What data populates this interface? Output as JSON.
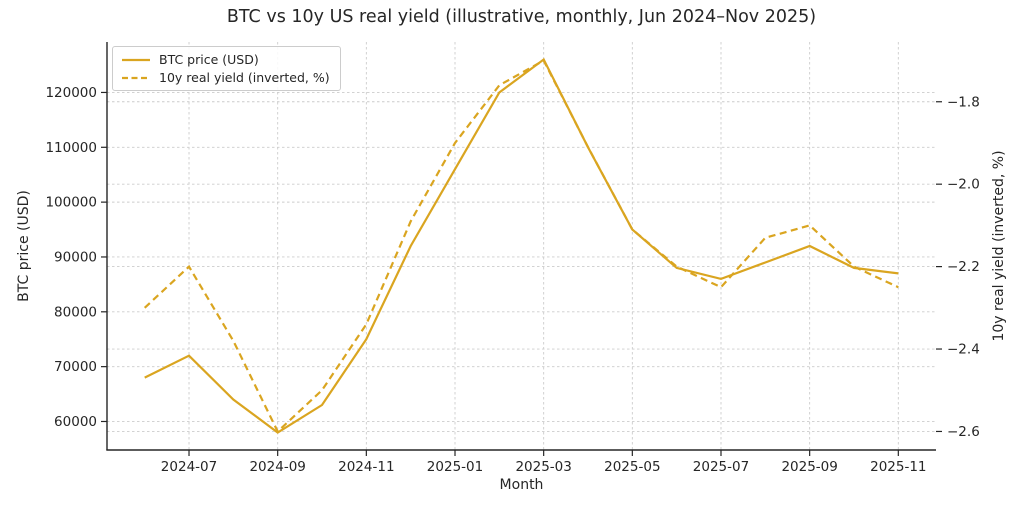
{
  "figure": {
    "title": "BTC vs 10y US real yield (illustrative, monthly, Jun 2024–Nov 2025)"
  },
  "legend": {
    "items": [
      {
        "label": "BTC price (USD)",
        "style": "solid"
      },
      {
        "label": "10y real yield (inverted, %)",
        "style": "dashed"
      }
    ]
  },
  "axes": {
    "x": {
      "label": "Month",
      "tick_labels": [
        "2024-07",
        "2024-09",
        "2024-11",
        "2025-01",
        "2025-03",
        "2025-05",
        "2025-07",
        "2025-09",
        "2025-11"
      ],
      "tick_month_indices": [
        1,
        3,
        5,
        7,
        9,
        11,
        13,
        15,
        17
      ]
    },
    "y_left": {
      "label": "BTC price (USD)",
      "ticks": [
        60000,
        70000,
        80000,
        90000,
        100000,
        110000,
        120000
      ],
      "tick_labels": [
        "60000",
        "70000",
        "80000",
        "90000",
        "100000",
        "110000",
        "120000"
      ]
    },
    "y_right": {
      "label": "10y real yield (inverted, %)",
      "ticks": [
        -1.8,
        -2.0,
        -2.2,
        -2.4,
        -2.6
      ],
      "tick_labels": [
        "−1.8",
        "−2.0",
        "−2.2",
        "−2.4",
        "−2.6"
      ]
    }
  },
  "chart_data": {
    "type": "line",
    "title": "BTC vs 10y US real yield (illustrative, monthly, Jun 2024–Nov 2025)",
    "xlabel": "Month",
    "ylabel_left": "BTC price (USD)",
    "ylabel_right": "10y real yield (inverted, %)",
    "x": [
      "2024-06",
      "2024-07",
      "2024-08",
      "2024-09",
      "2024-10",
      "2024-11",
      "2024-12",
      "2025-01",
      "2025-02",
      "2025-03",
      "2025-04",
      "2025-05",
      "2025-06",
      "2025-07",
      "2025-08",
      "2025-09",
      "2025-10",
      "2025-11"
    ],
    "series": [
      {
        "name": "BTC price (USD)",
        "axis": "left",
        "style": "solid",
        "color": "#DAA520",
        "values": [
          68000,
          72000,
          64000,
          58000,
          63000,
          75000,
          92000,
          106000,
          120000,
          126000,
          110000,
          95000,
          88000,
          86000,
          89000,
          92000,
          88000,
          87000
        ]
      },
      {
        "name": "10y real yield (inverted, %)",
        "axis": "right",
        "style": "dashed",
        "color": "#DAA520",
        "values": [
          -2.3,
          -2.2,
          -2.38,
          -2.6,
          -2.5,
          -2.34,
          -2.09,
          -1.9,
          -1.76,
          -1.7,
          -1.91,
          -2.11,
          -2.2,
          -2.25,
          -2.13,
          -2.1,
          -2.2,
          -2.25
        ]
      }
    ],
    "ylim_left": [
      54800,
      129200
    ],
    "ylim_right": [
      -2.645,
      -1.655
    ],
    "grid": true,
    "legend_position": "upper-left",
    "colors": {
      "line": "#DAA520",
      "text": "#262626",
      "spine": "#262626",
      "grid": "#cccccc"
    }
  }
}
